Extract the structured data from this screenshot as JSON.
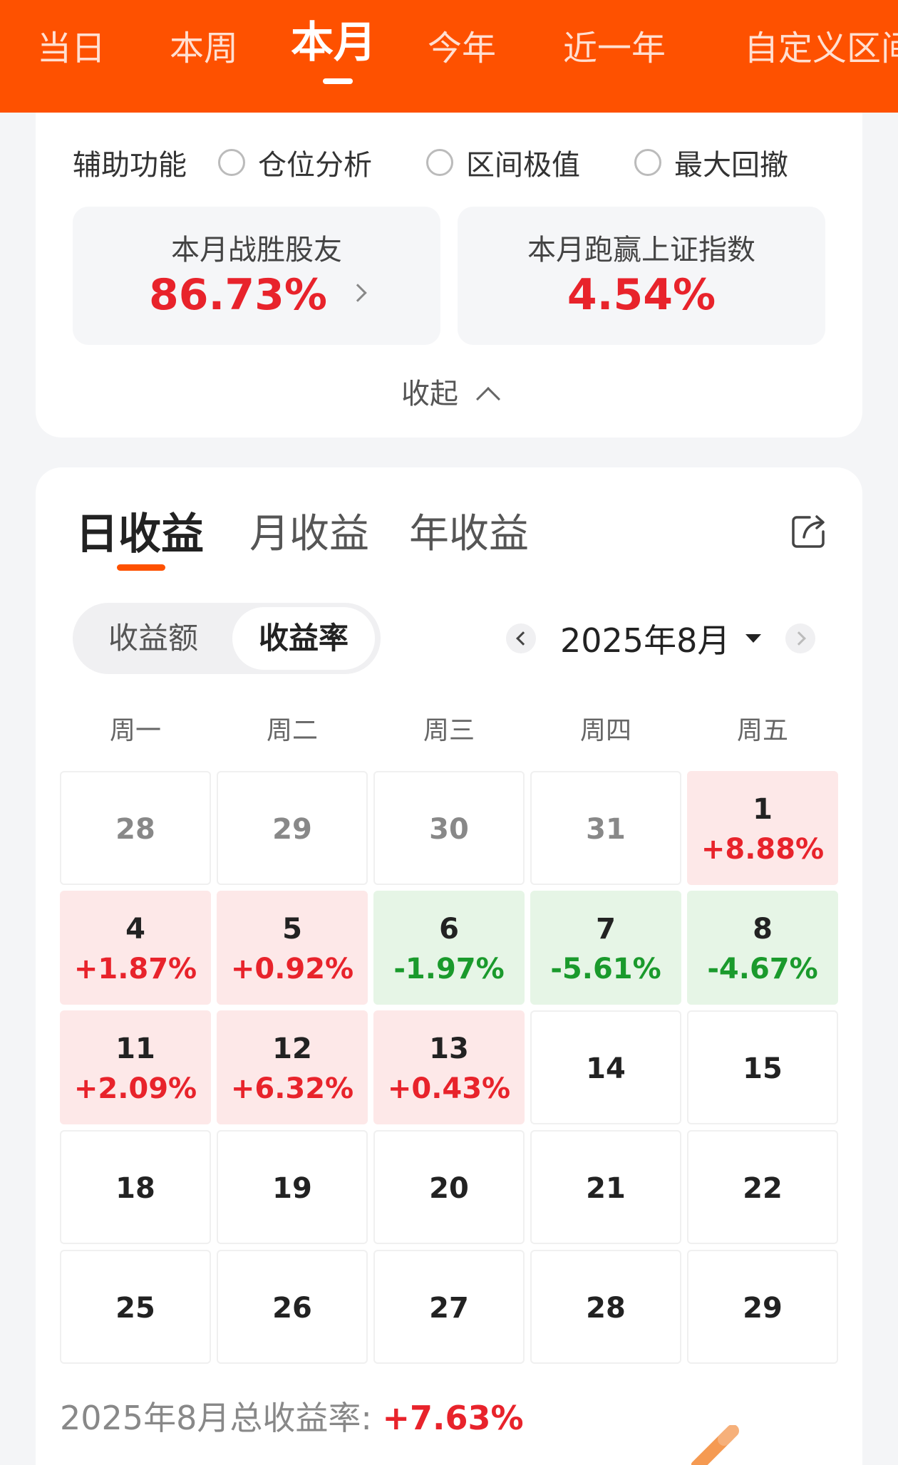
{
  "period_tabs": [
    {
      "label": "当日",
      "active": false
    },
    {
      "label": "本周",
      "active": false
    },
    {
      "label": "本月",
      "active": true
    },
    {
      "label": "今年",
      "active": false
    },
    {
      "label": "近一年",
      "active": false
    },
    {
      "label": "自定义区间",
      "active": false
    }
  ],
  "aux": {
    "label": "辅助功能",
    "options": [
      "仓位分析",
      "区间极值",
      "最大回撤"
    ]
  },
  "stats": {
    "beat_friends_label": "本月战胜股友",
    "beat_friends_value": "86.73%",
    "beat_index_label": "本月跑赢上证指数",
    "beat_index_value": "4.54%"
  },
  "collapse_label": "收起",
  "gain_tabs": [
    {
      "label": "日收益",
      "active": true
    },
    {
      "label": "月收益",
      "active": false
    },
    {
      "label": "年收益",
      "active": false
    }
  ],
  "segment": {
    "amount": "收益额",
    "rate": "收益率",
    "selected": "收益率"
  },
  "month_label": "2025年8月",
  "weekdays": [
    "周一",
    "周二",
    "周三",
    "周四",
    "周五"
  ],
  "calendar": [
    [
      {
        "day": "28",
        "pct": "",
        "state": "prev"
      },
      {
        "day": "29",
        "pct": "",
        "state": "prev"
      },
      {
        "day": "30",
        "pct": "",
        "state": "prev"
      },
      {
        "day": "31",
        "pct": "",
        "state": "prev"
      },
      {
        "day": "1",
        "pct": "+8.88%",
        "state": "up"
      }
    ],
    [
      {
        "day": "4",
        "pct": "+1.87%",
        "state": "up"
      },
      {
        "day": "5",
        "pct": "+0.92%",
        "state": "up"
      },
      {
        "day": "6",
        "pct": "-1.97%",
        "state": "down"
      },
      {
        "day": "7",
        "pct": "-5.61%",
        "state": "down"
      },
      {
        "day": "8",
        "pct": "-4.67%",
        "state": "down"
      }
    ],
    [
      {
        "day": "11",
        "pct": "+2.09%",
        "state": "up"
      },
      {
        "day": "12",
        "pct": "+6.32%",
        "state": "up"
      },
      {
        "day": "13",
        "pct": "+0.43%",
        "state": "up"
      },
      {
        "day": "14",
        "pct": "",
        "state": "none"
      },
      {
        "day": "15",
        "pct": "",
        "state": "none"
      }
    ],
    [
      {
        "day": "18",
        "pct": "",
        "state": "none"
      },
      {
        "day": "19",
        "pct": "",
        "state": "none"
      },
      {
        "day": "20",
        "pct": "",
        "state": "none"
      },
      {
        "day": "21",
        "pct": "",
        "state": "none"
      },
      {
        "day": "22",
        "pct": "",
        "state": "none"
      }
    ],
    [
      {
        "day": "25",
        "pct": "",
        "state": "none"
      },
      {
        "day": "26",
        "pct": "",
        "state": "none"
      },
      {
        "day": "27",
        "pct": "",
        "state": "none"
      },
      {
        "day": "28",
        "pct": "",
        "state": "none"
      },
      {
        "day": "29",
        "pct": "",
        "state": "none"
      }
    ]
  ],
  "total": {
    "label": "2025年8月总收益率:",
    "value": "+7.63%"
  },
  "colors": {
    "brand": "#fe5100",
    "up": "#e8232b",
    "down": "#1a9a2c",
    "up_bg": "#fde8e8",
    "down_bg": "#e6f5e6"
  },
  "icons": {
    "share": "share-icon",
    "prev_month": "chevron-left-icon",
    "next_month": "chevron-right-icon",
    "dropdown": "caret-down-icon",
    "collapse": "chevron-up-icon",
    "detail": "chevron-right-icon",
    "edit": "pencil-icon"
  }
}
